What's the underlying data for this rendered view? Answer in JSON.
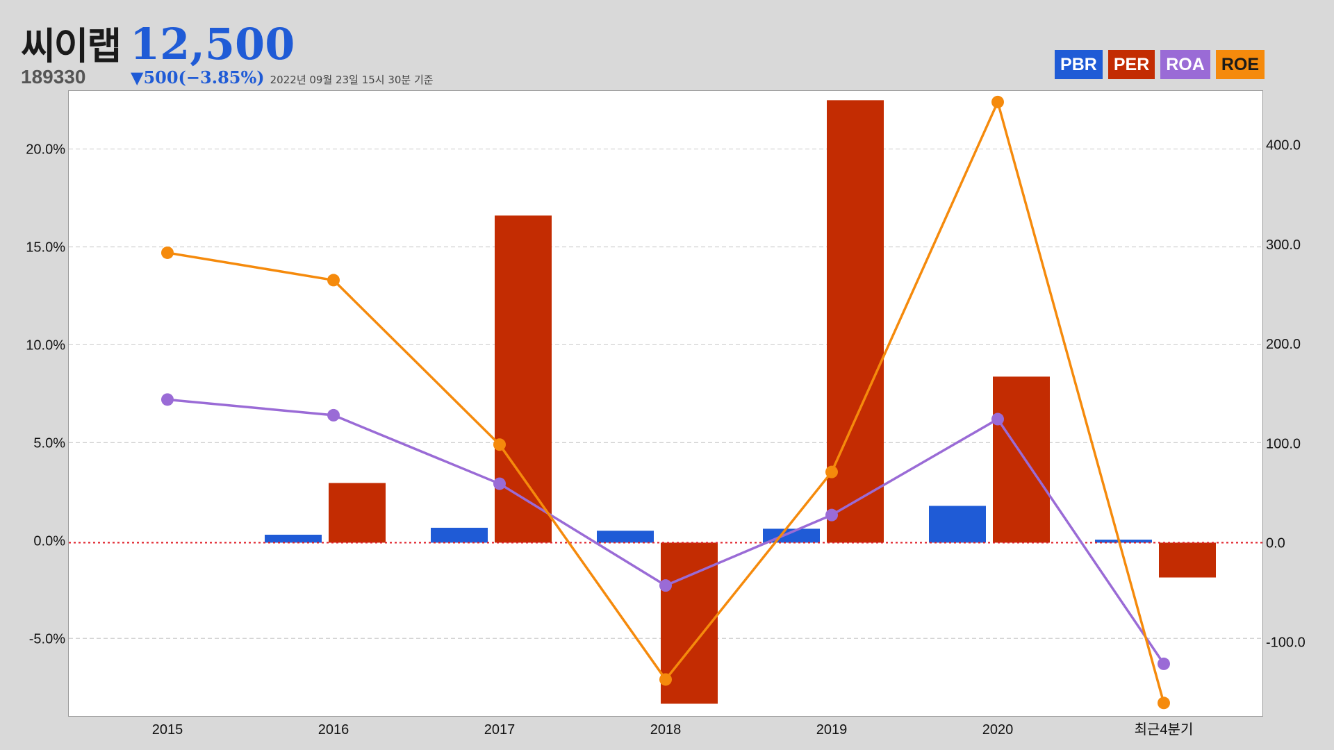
{
  "header": {
    "name": "씨이랩",
    "price": "12,500",
    "code": "189330",
    "change": "▼500(−3.85%)",
    "date": "2022년 09월 23일 15시 30분 기준"
  },
  "legend": [
    {
      "label": "PBR",
      "color": "#1f5bd6"
    },
    {
      "label": "PER",
      "color": "#c32c02"
    },
    {
      "label": "ROA",
      "color": "#9a6bd6"
    },
    {
      "label": "ROE",
      "color": "#f58a0c"
    }
  ],
  "chart_data": {
    "type": "bar",
    "categories": [
      "2015",
      "2016",
      "2017",
      "2018",
      "2019",
      "2020",
      "최근4분기"
    ],
    "left_axis": {
      "ticks": [
        "20.0%",
        "15.0%",
        "10.0%",
        "5.0%",
        "0.0%",
        "-5.0%"
      ],
      "range": [
        -9.0,
        23.0
      ]
    },
    "right_axis": {
      "ticks": [
        "400.0",
        "300.0",
        "200.0",
        "100.0",
        "0.0",
        "-100.0"
      ],
      "range": [
        -175.0,
        455.0
      ]
    },
    "grid": true,
    "zero_line": "red-dotted",
    "legend_position": "top-right",
    "series": [
      {
        "name": "PBR",
        "type": "bar",
        "axis": "right",
        "color": "#1f5bd6",
        "values": [
          null,
          8.0,
          15.0,
          12.0,
          14.0,
          37.0,
          3.0
        ]
      },
      {
        "name": "PER",
        "type": "bar",
        "axis": "right",
        "color": "#c32c02",
        "values": [
          null,
          60.0,
          329.0,
          -162.0,
          445.0,
          167.0,
          -35.0
        ]
      },
      {
        "name": "ROA",
        "type": "line",
        "axis": "left",
        "color": "#9a6bd6",
        "values": [
          7.2,
          6.4,
          2.9,
          -2.3,
          1.3,
          6.2,
          -6.3
        ]
      },
      {
        "name": "ROE",
        "type": "line",
        "axis": "left",
        "color": "#f58a0c",
        "values": [
          14.7,
          13.3,
          4.9,
          -7.1,
          3.5,
          22.4,
          -8.3
        ]
      }
    ]
  }
}
